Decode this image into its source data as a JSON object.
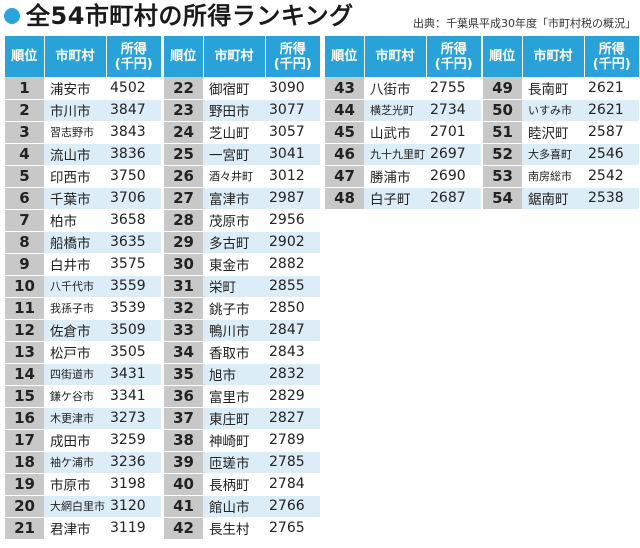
{
  "title": "全54市町村の所得ランキング",
  "source": "出典：千葉県平成30年度「市町村税の概況」",
  "headers": {
    "rank": "順位",
    "city": "市町村",
    "income": "所得\n(千円)"
  },
  "accent_color": "#29a2d9",
  "columns": [
    [
      {
        "rank": "1",
        "city": "浦安市",
        "income": "4502"
      },
      {
        "rank": "2",
        "city": "市川市",
        "income": "3847"
      },
      {
        "rank": "3",
        "city": "習志野市",
        "income": "3843"
      },
      {
        "rank": "4",
        "city": "流山市",
        "income": "3836"
      },
      {
        "rank": "5",
        "city": "印西市",
        "income": "3750"
      },
      {
        "rank": "6",
        "city": "千葉市",
        "income": "3706"
      },
      {
        "rank": "7",
        "city": "柏市",
        "income": "3658"
      },
      {
        "rank": "8",
        "city": "船橋市",
        "income": "3635"
      },
      {
        "rank": "9",
        "city": "白井市",
        "income": "3575"
      },
      {
        "rank": "10",
        "city": "八千代市",
        "income": "3559"
      },
      {
        "rank": "11",
        "city": "我孫子市",
        "income": "3539"
      },
      {
        "rank": "12",
        "city": "佐倉市",
        "income": "3509"
      },
      {
        "rank": "13",
        "city": "松戸市",
        "income": "3505"
      },
      {
        "rank": "14",
        "city": "四街道市",
        "income": "3431"
      },
      {
        "rank": "15",
        "city": "鎌ケ谷市",
        "income": "3341"
      },
      {
        "rank": "16",
        "city": "木更津市",
        "income": "3273"
      },
      {
        "rank": "17",
        "city": "成田市",
        "income": "3259"
      },
      {
        "rank": "18",
        "city": "袖ケ浦市",
        "income": "3236"
      },
      {
        "rank": "19",
        "city": "市原市",
        "income": "3198"
      },
      {
        "rank": "20",
        "city": "大網白里市",
        "income": "3120"
      },
      {
        "rank": "21",
        "city": "君津市",
        "income": "3119"
      }
    ],
    [
      {
        "rank": "22",
        "city": "御宿町",
        "income": "3090"
      },
      {
        "rank": "23",
        "city": "野田市",
        "income": "3077"
      },
      {
        "rank": "24",
        "city": "芝山町",
        "income": "3057"
      },
      {
        "rank": "25",
        "city": "一宮町",
        "income": "3041"
      },
      {
        "rank": "26",
        "city": "酒々井町",
        "income": "3012"
      },
      {
        "rank": "27",
        "city": "富津市",
        "income": "2987"
      },
      {
        "rank": "28",
        "city": "茂原市",
        "income": "2956"
      },
      {
        "rank": "29",
        "city": "多古町",
        "income": "2902"
      },
      {
        "rank": "30",
        "city": "東金市",
        "income": "2882"
      },
      {
        "rank": "31",
        "city": "栄町",
        "income": "2855"
      },
      {
        "rank": "32",
        "city": "銚子市",
        "income": "2850"
      },
      {
        "rank": "33",
        "city": "鴨川市",
        "income": "2847"
      },
      {
        "rank": "34",
        "city": "香取市",
        "income": "2843"
      },
      {
        "rank": "35",
        "city": "旭市",
        "income": "2832"
      },
      {
        "rank": "36",
        "city": "富里市",
        "income": "2829"
      },
      {
        "rank": "37",
        "city": "東庄町",
        "income": "2827"
      },
      {
        "rank": "38",
        "city": "神崎町",
        "income": "2789"
      },
      {
        "rank": "39",
        "city": "匝瑳市",
        "income": "2785"
      },
      {
        "rank": "40",
        "city": "長柄町",
        "income": "2784"
      },
      {
        "rank": "41",
        "city": "館山市",
        "income": "2766"
      },
      {
        "rank": "42",
        "city": "長生村",
        "income": "2765"
      }
    ],
    [
      {
        "rank": "43",
        "city": "八街市",
        "income": "2755"
      },
      {
        "rank": "44",
        "city": "横芝光町",
        "income": "2734"
      },
      {
        "rank": "45",
        "city": "山武市",
        "income": "2701"
      },
      {
        "rank": "46",
        "city": "九十九里町",
        "income": "2697"
      },
      {
        "rank": "47",
        "city": "勝浦市",
        "income": "2690"
      },
      {
        "rank": "48",
        "city": "白子町",
        "income": "2687"
      }
    ],
    [
      {
        "rank": "49",
        "city": "長南町",
        "income": "2621"
      },
      {
        "rank": "50",
        "city": "いすみ市",
        "income": "2621"
      },
      {
        "rank": "51",
        "city": "睦沢町",
        "income": "2587"
      },
      {
        "rank": "52",
        "city": "大多喜町",
        "income": "2546"
      },
      {
        "rank": "53",
        "city": "南房総市",
        "income": "2542"
      },
      {
        "rank": "54",
        "city": "鋸南町",
        "income": "2538"
      }
    ]
  ]
}
